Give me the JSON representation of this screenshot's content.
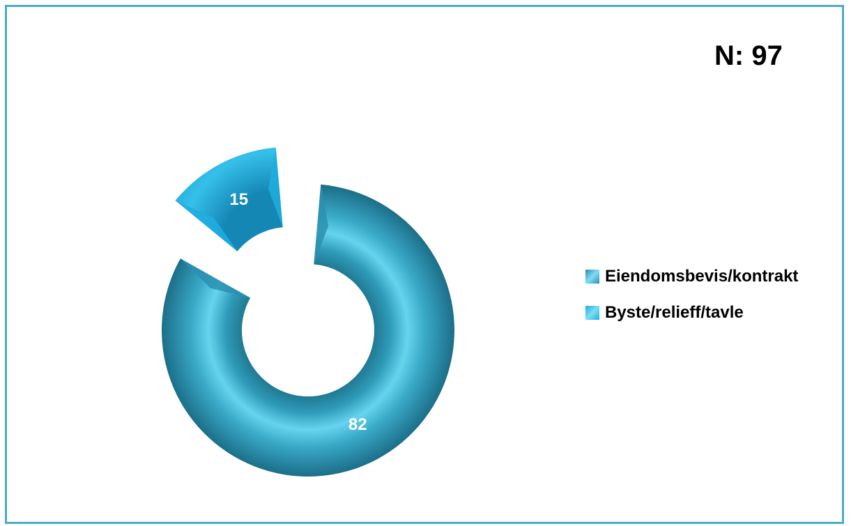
{
  "header": {
    "n_label": "N: 97"
  },
  "chart_data": {
    "type": "pie",
    "style": "3d-doughnut",
    "categories": [
      "Eiendomsbevis/kontrakt",
      "Byste/relieff/tavle"
    ],
    "values": [
      82,
      15
    ],
    "colors": [
      "#2b8fb0",
      "#1eaee0"
    ],
    "legend_position": "right"
  }
}
